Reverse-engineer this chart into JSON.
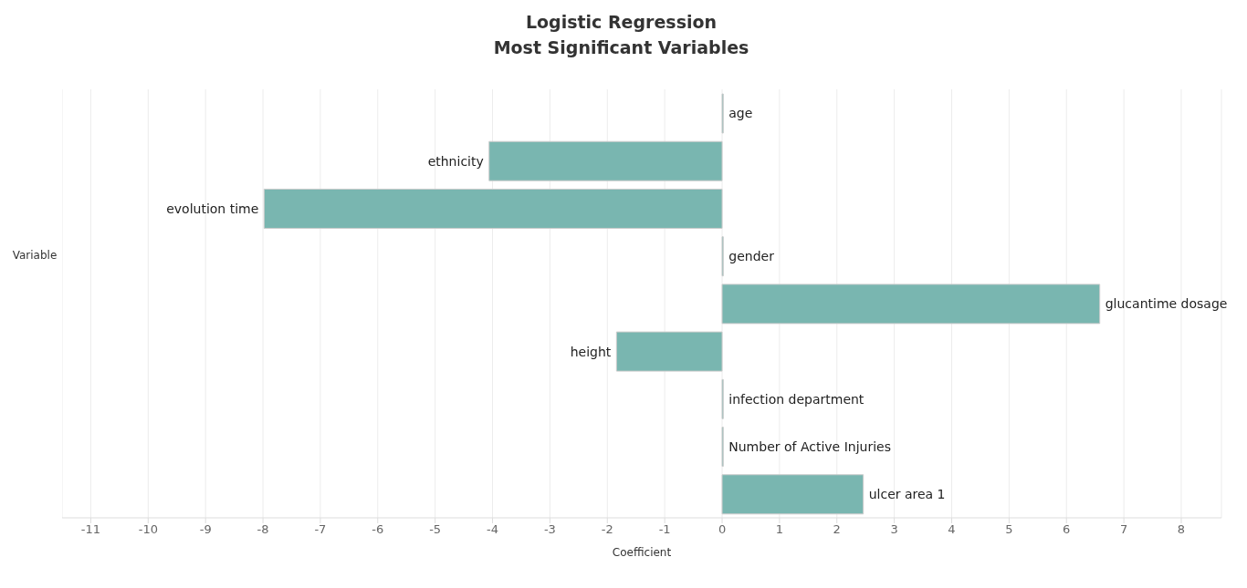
{
  "chart_data": {
    "type": "bar",
    "orientation": "horizontal",
    "title": "Logistic Regression",
    "subtitle": "Most Significant Variables",
    "xlabel": "Coefficient",
    "ylabel": "Variable",
    "categories": [
      "age",
      "ethnicity",
      "evolution time",
      "gender",
      "glucantime dosage",
      "height",
      "infection department",
      "Number of Active Injuries",
      "ulcer area 1"
    ],
    "values": [
      0.02,
      -4.06,
      -7.98,
      0.02,
      6.58,
      -1.84,
      0.02,
      0.02,
      2.46
    ],
    "color": "#79b6b0",
    "xlim": [
      -11.5,
      8.7
    ],
    "xticks": [
      -11,
      -10,
      -9,
      -8,
      -7,
      -6,
      -5,
      -4,
      -3,
      -2,
      -1,
      0,
      1,
      2,
      3,
      4,
      5,
      6,
      7,
      8
    ],
    "grid": "x",
    "legend": false
  }
}
